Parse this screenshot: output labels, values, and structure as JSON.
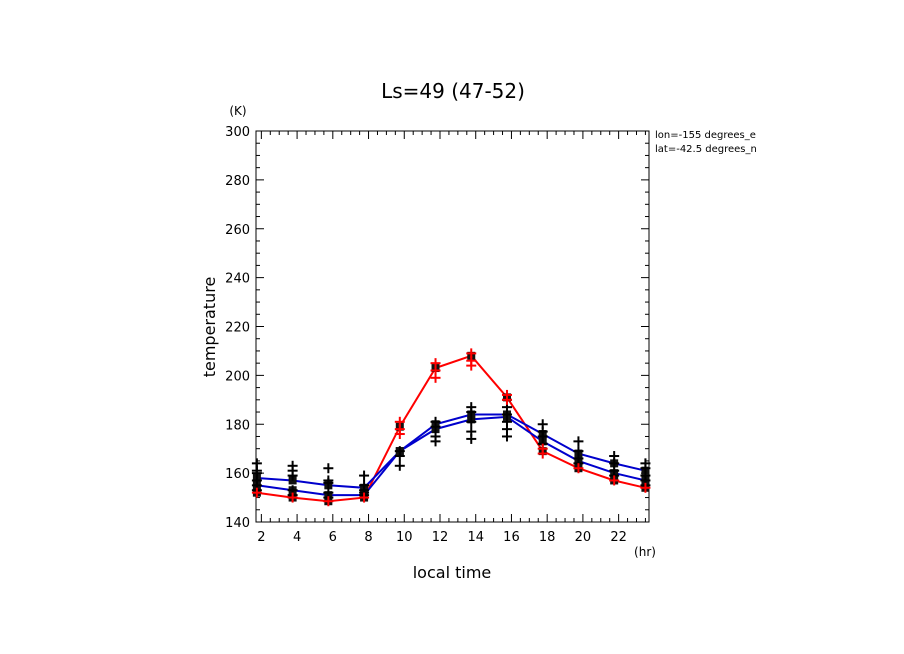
{
  "chart_data": {
    "type": "line",
    "title": "Ls=49 (47-52)",
    "xlabel": "local time",
    "ylabel": "temperature",
    "x_unit": "(hr)",
    "y_unit": "(K)",
    "annotations": [
      "lon=-155 degrees_e",
      "lat=-42.5 degrees_n"
    ],
    "xlim": [
      1.7,
      23.7
    ],
    "ylim": [
      140,
      300
    ],
    "xticks": [
      2,
      4,
      6,
      8,
      10,
      12,
      14,
      16,
      18,
      20,
      22
    ],
    "yticks": [
      140,
      160,
      180,
      200,
      220,
      240,
      260,
      280,
      300
    ],
    "grid": false,
    "x": [
      1.75,
      3.75,
      5.75,
      7.75,
      9.75,
      11.75,
      13.75,
      15.75,
      17.75,
      19.75,
      21.75,
      23.5
    ],
    "series": [
      {
        "color": "#ff0000",
        "marker": "line+square",
        "values": [
          152,
          150,
          148.5,
          150,
          179,
          203,
          208,
          191,
          169,
          162,
          157,
          154
        ]
      },
      {
        "color": "#0000cc",
        "marker": "line+square",
        "values": [
          155,
          153,
          151,
          151,
          169,
          178,
          182,
          183,
          173,
          165,
          160,
          157
        ]
      },
      {
        "color": "#0000cc",
        "marker": "line+square",
        "values": [
          158,
          157,
          155,
          154,
          169,
          180,
          184,
          184,
          176,
          168,
          164,
          161
        ]
      }
    ],
    "scatter_points": [
      {
        "color": "#000000",
        "marker": "plus",
        "x": 1.75,
        "values": [
          164,
          161,
          160,
          157,
          155,
          153
        ]
      },
      {
        "color": "#000000",
        "marker": "plus",
        "x": 3.75,
        "values": [
          163,
          161,
          159,
          153,
          151
        ]
      },
      {
        "color": "#000000",
        "marker": "plus",
        "x": 5.75,
        "values": [
          162,
          157,
          156,
          152,
          150
        ]
      },
      {
        "color": "#000000",
        "marker": "plus",
        "x": 7.75,
        "values": [
          159,
          155,
          153,
          152,
          151
        ]
      },
      {
        "color": "#000000",
        "marker": "plus",
        "x": 9.75,
        "values": [
          169,
          167,
          163
        ]
      },
      {
        "color": "#000000",
        "marker": "plus",
        "x": 11.75,
        "values": [
          181,
          179,
          175,
          173
        ]
      },
      {
        "color": "#000000",
        "marker": "plus",
        "x": 13.75,
        "values": [
          187,
          185,
          181,
          177,
          174
        ]
      },
      {
        "color": "#000000",
        "marker": "plus",
        "x": 15.75,
        "values": [
          190,
          187,
          184,
          181,
          178,
          175
        ]
      },
      {
        "color": "#000000",
        "marker": "plus",
        "x": 17.75,
        "values": [
          180,
          177,
          175,
          172
        ]
      },
      {
        "color": "#000000",
        "marker": "plus",
        "x": 19.75,
        "values": [
          173,
          169,
          166,
          164
        ]
      },
      {
        "color": "#000000",
        "marker": "plus",
        "x": 21.75,
        "values": [
          167,
          164,
          161,
          159
        ]
      },
      {
        "color": "#000000",
        "marker": "plus",
        "x": 23.5,
        "values": [
          164,
          162,
          159,
          157,
          155
        ]
      }
    ],
    "red_plus_points": [
      {
        "x": 1.75,
        "values": [
          152
        ]
      },
      {
        "x": 3.75,
        "values": [
          150
        ]
      },
      {
        "x": 5.75,
        "values": [
          148.5
        ]
      },
      {
        "x": 7.75,
        "values": [
          150
        ]
      },
      {
        "x": 9.75,
        "values": [
          181,
          178,
          176
        ]
      },
      {
        "x": 11.75,
        "values": [
          205,
          202,
          199
        ]
      },
      {
        "x": 13.75,
        "values": [
          209,
          206,
          204
        ]
      },
      {
        "x": 15.75,
        "values": [
          192,
          190
        ]
      },
      {
        "x": 17.75,
        "values": [
          170,
          168
        ]
      },
      {
        "x": 19.75,
        "values": [
          162
        ]
      },
      {
        "x": 21.75,
        "values": [
          157
        ]
      },
      {
        "x": 23.5,
        "values": [
          154
        ]
      }
    ]
  }
}
